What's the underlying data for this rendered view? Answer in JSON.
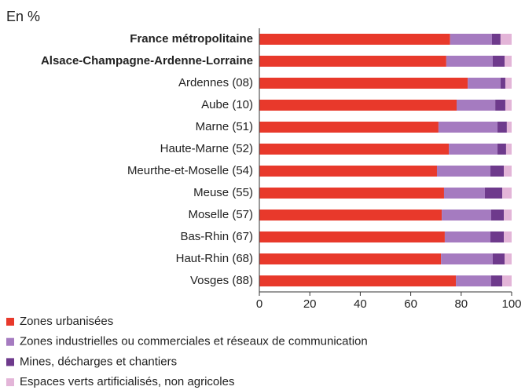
{
  "chart_data": {
    "type": "stacked_barh",
    "title": "En %",
    "categories": [
      "France métropolitaine",
      "Alsace-Champagne-Ardenne-Lorraine",
      "Ardennes (08)",
      "Aube (10)",
      "Marne (51)",
      "Haute-Marne (52)",
      "Meurthe-et-Moselle (54)",
      "Meuse (55)",
      "Moselle (57)",
      "Bas-Rhin (67)",
      "Haut-Rhin (68)",
      "Vosges (88)"
    ],
    "series": [
      {
        "name": "Zones urbanisées",
        "color": "#e8392b",
        "values": [
          75.6,
          74.1,
          82.6,
          78.2,
          71.0,
          75.1,
          70.4,
          73.2,
          72.3,
          73.5,
          72.0,
          77.9
        ]
      },
      {
        "name": "Zones industrielles ou commerciales et réseaux de communication",
        "color": "#a57bc0",
        "values": [
          16.6,
          18.4,
          13.0,
          15.3,
          23.4,
          19.3,
          21.2,
          16.2,
          19.6,
          18.1,
          20.5,
          14.0
        ]
      },
      {
        "name": "Mines, décharges et chantiers",
        "color": "#6e3a8c",
        "values": [
          3.4,
          4.7,
          1.9,
          4.0,
          3.7,
          3.4,
          5.3,
          6.9,
          5.0,
          5.3,
          4.7,
          4.4
        ]
      },
      {
        "name": "Espaces verts artificialisés, non agricoles",
        "color": "#e3b5d8",
        "values": [
          4.4,
          2.8,
          2.5,
          2.5,
          1.9,
          2.2,
          3.1,
          3.7,
          3.1,
          3.1,
          2.8,
          3.7
        ]
      }
    ],
    "xlim": [
      0,
      100
    ],
    "xticks": [
      0,
      20,
      40,
      60,
      80,
      100
    ]
  }
}
